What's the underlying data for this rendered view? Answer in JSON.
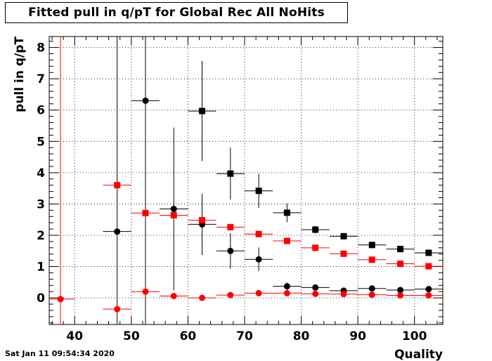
{
  "title": "Fitted pull in q/pT for Global Rec All NoHits",
  "timestamp": "Sat Jan 11 09:54:34 2020",
  "chart_data": {
    "type": "scatter",
    "xlabel": "Quality",
    "ylabel": "pull in q/pT",
    "xlim": [
      35.5,
      105
    ],
    "ylim": [
      -0.85,
      8.35
    ],
    "grid": true,
    "x_ticks": [
      40,
      50,
      60,
      70,
      80,
      90,
      100
    ],
    "y_ticks": [
      0,
      1,
      2,
      3,
      4,
      5,
      6,
      7,
      8
    ],
    "bin_half_width": 2.5,
    "series": [
      {
        "color": "#000000",
        "marker": "square",
        "points": [
          {
            "x": 62.5,
            "y": 5.97,
            "err": 1.6
          },
          {
            "x": 67.5,
            "y": 3.97,
            "err": 0.83
          },
          {
            "x": 72.5,
            "y": 3.42,
            "err": 0.55
          },
          {
            "x": 77.5,
            "y": 2.72,
            "err": 0.3
          },
          {
            "x": 82.5,
            "y": 2.18,
            "err": 0.12
          },
          {
            "x": 87.5,
            "y": 1.97,
            "err": 0.1
          },
          {
            "x": 92.5,
            "y": 1.69,
            "err": 0.07
          },
          {
            "x": 97.5,
            "y": 1.56,
            "err": 0.06
          },
          {
            "x": 102.5,
            "y": 1.44,
            "err": 0.05
          }
        ]
      },
      {
        "color": "#000000",
        "marker": "circle",
        "points": [
          {
            "x": 47.5,
            "y": 2.12,
            "err": 9.0
          },
          {
            "x": 52.5,
            "y": 6.3,
            "err": 9.0
          },
          {
            "x": 57.5,
            "y": 2.84,
            "err": 2.6
          },
          {
            "x": 62.5,
            "y": 2.35,
            "err": 0.98
          },
          {
            "x": 67.5,
            "y": 1.5,
            "err": 0.57
          },
          {
            "x": 72.5,
            "y": 1.23,
            "err": 0.38
          },
          {
            "x": 77.5,
            "y": 0.37,
            "err": 0.12
          },
          {
            "x": 82.5,
            "y": 0.33,
            "err": 0.08
          },
          {
            "x": 87.5,
            "y": 0.23,
            "err": 0.06
          },
          {
            "x": 92.5,
            "y": 0.3,
            "err": 0.05
          },
          {
            "x": 97.5,
            "y": 0.25,
            "err": 0.04
          },
          {
            "x": 102.5,
            "y": 0.28,
            "err": 0.03
          }
        ]
      },
      {
        "color": "#ff0000",
        "marker": "square",
        "points": [
          {
            "x": 47.5,
            "y": 3.6,
            "err": 0.0
          },
          {
            "x": 52.5,
            "y": 2.71,
            "err": 0.0
          },
          {
            "x": 57.5,
            "y": 2.64,
            "err": 0.0
          },
          {
            "x": 62.5,
            "y": 2.48,
            "err": 0.0
          },
          {
            "x": 67.5,
            "y": 2.26,
            "err": 0.0
          },
          {
            "x": 72.5,
            "y": 2.04,
            "err": 0.0
          },
          {
            "x": 77.5,
            "y": 1.82,
            "err": 0.0
          },
          {
            "x": 82.5,
            "y": 1.6,
            "err": 0.0
          },
          {
            "x": 87.5,
            "y": 1.41,
            "err": 0.0
          },
          {
            "x": 92.5,
            "y": 1.22,
            "err": 0.0
          },
          {
            "x": 97.5,
            "y": 1.09,
            "err": 0.0
          },
          {
            "x": 102.5,
            "y": 1.01,
            "err": 0.0
          }
        ]
      },
      {
        "color": "#ff0000",
        "marker": "circle",
        "points": [
          {
            "x": 37.5,
            "y": -0.04,
            "err": 9.0
          },
          {
            "x": 47.5,
            "y": -0.36,
            "err": 0.0
          },
          {
            "x": 52.5,
            "y": 0.2,
            "err": 0.0
          },
          {
            "x": 57.5,
            "y": 0.06,
            "err": 0.0
          },
          {
            "x": 62.5,
            "y": 0.0,
            "err": 0.0
          },
          {
            "x": 67.5,
            "y": 0.09,
            "err": 0.0
          },
          {
            "x": 72.5,
            "y": 0.15,
            "err": 0.0
          },
          {
            "x": 77.5,
            "y": 0.15,
            "err": 0.0
          },
          {
            "x": 82.5,
            "y": 0.13,
            "err": 0.0
          },
          {
            "x": 87.5,
            "y": 0.12,
            "err": 0.0
          },
          {
            "x": 92.5,
            "y": 0.1,
            "err": 0.0
          },
          {
            "x": 97.5,
            "y": 0.08,
            "err": 0.0
          },
          {
            "x": 102.5,
            "y": 0.08,
            "err": 0.0
          }
        ]
      }
    ]
  }
}
